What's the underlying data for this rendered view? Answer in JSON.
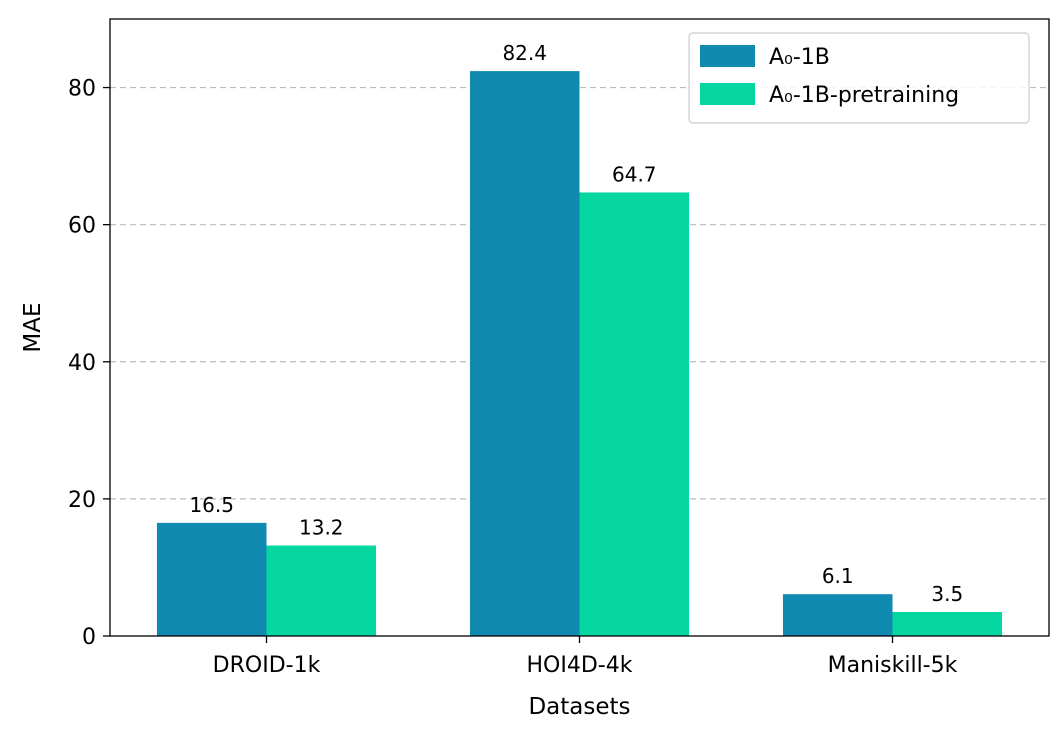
{
  "chart_data": {
    "type": "bar",
    "title": "",
    "xlabel": "Datasets",
    "ylabel": "MAE",
    "categories": [
      "DROID-1k",
      "HOI4D-4k",
      "Maniskill-5k"
    ],
    "series": [
      {
        "name": "A₀-1B",
        "color": "#118ab2",
        "values": [
          16.5,
          82.4,
          6.1
        ],
        "labels": [
          "16.5",
          "82.4",
          "6.1"
        ]
      },
      {
        "name": "A₀-1B-pretraining",
        "color": "#06d6a0",
        "values": [
          13.2,
          64.7,
          3.5
        ],
        "labels": [
          "13.2",
          "64.7",
          "3.5"
        ]
      }
    ],
    "ylim": [
      0,
      90
    ],
    "yticks": [
      0,
      20,
      40,
      60,
      80
    ],
    "ytick_labels": [
      "0",
      "20",
      "40",
      "60",
      "80"
    ],
    "grid": {
      "axis": "y",
      "style": "dashed",
      "color": "#bbbbbb"
    },
    "legend": {
      "position": "upper right"
    }
  }
}
